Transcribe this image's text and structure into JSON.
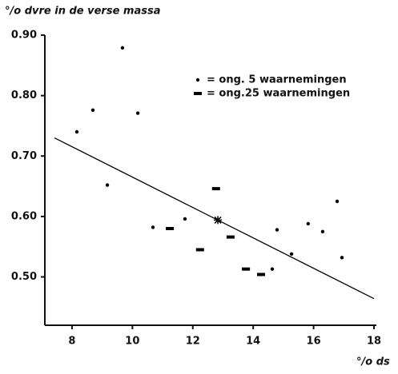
{
  "chart_data": {
    "type": "scatter",
    "y_label": "°/o dvre in de verse massa",
    "x_label": "°/o ds",
    "xlim": [
      7.1,
      18
    ],
    "xticks": [
      8,
      10,
      12,
      14,
      16,
      18
    ],
    "ylim": [
      0.42,
      0.9
    ],
    "yticks": [
      {
        "value": 0.9,
        "label": "0.90"
      },
      {
        "value": 0.8,
        "label": "0.80"
      },
      {
        "value": 0.7,
        "label": "0.70"
      },
      {
        "value": 0.6,
        "label": "0.60"
      },
      {
        "value": 0.5,
        "label": "0.50"
      }
    ],
    "color": "#000000",
    "series": [
      {
        "name": "= ong. 5 waarnemingen",
        "marker": "dot",
        "x": [
          8.16,
          8.69,
          9.17,
          9.67,
          10.18,
          10.68,
          11.74,
          14.63,
          14.79,
          15.27,
          15.82,
          16.3,
          16.78,
          16.94
        ],
        "values": [
          0.74,
          0.776,
          0.652,
          0.879,
          0.771,
          0.582,
          0.596,
          0.513,
          0.578,
          0.538,
          0.588,
          0.575,
          0.625,
          0.532
        ]
      },
      {
        "name": "= ong.25 waarnemingen",
        "marker": "dash",
        "x": [
          11.24,
          12.24,
          12.77,
          13.25,
          13.76,
          14.26
        ],
        "values": [
          0.58,
          0.545,
          0.646,
          0.566,
          0.513,
          0.504
        ]
      }
    ],
    "trend_line": {
      "x": [
        7.42,
        18
      ],
      "values": [
        0.73,
        0.464
      ]
    },
    "mean_point": {
      "x": 12.83,
      "values": 0.594
    }
  }
}
